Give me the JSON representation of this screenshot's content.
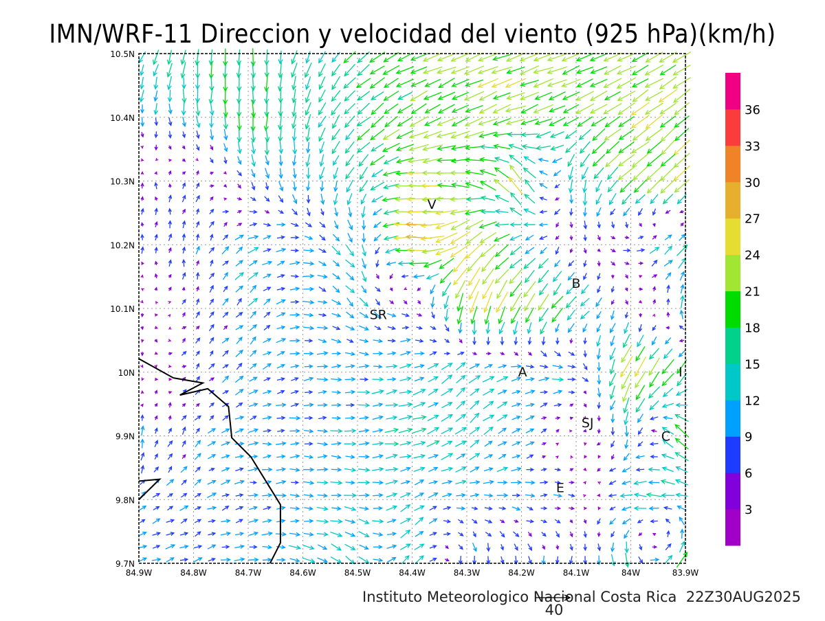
{
  "chart_data": {
    "type": "vector-field",
    "title": "IMN/WRF-11 Direccion y velocidad del viento (925 hPa)(km/h)",
    "footer": "Instituto Meteorologico Nacional Costa Rica  22Z30AUG2025",
    "reference_vector": {
      "value": 40,
      "label": "40"
    },
    "x_ticks": [
      {
        "v": -84.9,
        "label": "84.9W"
      },
      {
        "v": -84.8,
        "label": "84.8W"
      },
      {
        "v": -84.7,
        "label": "84.7W"
      },
      {
        "v": -84.6,
        "label": "84.6W"
      },
      {
        "v": -84.5,
        "label": "84.5W"
      },
      {
        "v": -84.4,
        "label": "84.4W"
      },
      {
        "v": -84.3,
        "label": "84.3W"
      },
      {
        "v": -84.2,
        "label": "84.2W"
      },
      {
        "v": -84.1,
        "label": "84.1W"
      },
      {
        "v": -84.0,
        "label": "84W"
      },
      {
        "v": -83.9,
        "label": "83.9W"
      }
    ],
    "y_ticks": [
      {
        "v": 10.5,
        "label": "10.5N"
      },
      {
        "v": 10.4,
        "label": "10.4N"
      },
      {
        "v": 10.3,
        "label": "10.3N"
      },
      {
        "v": 10.2,
        "label": "10.2N"
      },
      {
        "v": 10.1,
        "label": "10.1N"
      },
      {
        "v": 10.0,
        "label": "10N"
      },
      {
        "v": 9.9,
        "label": "9.9N"
      },
      {
        "v": 9.8,
        "label": "9.8N"
      },
      {
        "v": 9.7,
        "label": "9.7N"
      }
    ],
    "xlim": [
      -84.9,
      -83.9
    ],
    "ylim": [
      9.7,
      10.5
    ],
    "colorbar": {
      "labels": [
        "3",
        "6",
        "9",
        "12",
        "15",
        "18",
        "21",
        "24",
        "27",
        "30",
        "33",
        "36"
      ],
      "colors": [
        "#a000c8",
        "#8200dc",
        "#1e3cff",
        "#00a0ff",
        "#00c8c8",
        "#00d28c",
        "#00dc00",
        "#a0e632",
        "#e6dc32",
        "#e6af2d",
        "#f08228",
        "#fa3c3c",
        "#f00082"
      ],
      "step": 3
    },
    "wind_grid": {
      "note": "[speed km/h, heading deg toward (0=N,90=E)]; rows lat 10.5..9.7, cols lon 84.9W..83.9W",
      "rows": [
        [
          [
            15,
            200
          ],
          [
            18,
            190
          ],
          [
            18,
            180
          ],
          [
            15,
            200
          ],
          [
            18,
            230
          ],
          [
            20,
            245
          ],
          [
            22,
            250
          ],
          [
            22,
            250
          ],
          [
            22,
            250
          ],
          [
            22,
            245
          ],
          [
            22,
            240
          ]
        ],
        [
          [
            10,
            180
          ],
          [
            12,
            170
          ],
          [
            20,
            180
          ],
          [
            15,
            190
          ],
          [
            18,
            230
          ],
          [
            20,
            240
          ],
          [
            22,
            245
          ],
          [
            22,
            250
          ],
          [
            20,
            245
          ],
          [
            22,
            235
          ],
          [
            22,
            230
          ]
        ],
        [
          [
            5,
            0
          ],
          [
            6,
            20
          ],
          [
            8,
            150
          ],
          [
            12,
            180
          ],
          [
            15,
            210
          ],
          [
            25,
            270
          ],
          [
            20,
            280
          ],
          [
            25,
            330
          ],
          [
            15,
            180
          ],
          [
            22,
            230
          ],
          [
            22,
            225
          ]
        ],
        [
          [
            6,
            0
          ],
          [
            8,
            10
          ],
          [
            12,
            60
          ],
          [
            10,
            90
          ],
          [
            15,
            150
          ],
          [
            30,
            275
          ],
          [
            27,
            230
          ],
          [
            15,
            240
          ],
          [
            5,
            180
          ],
          [
            8,
            90
          ],
          [
            15,
            45
          ]
        ],
        [
          [
            3,
            180
          ],
          [
            6,
            30
          ],
          [
            10,
            45
          ],
          [
            10,
            90
          ],
          [
            12,
            140
          ],
          [
            8,
            100
          ],
          [
            25,
            195
          ],
          [
            25,
            210
          ],
          [
            18,
            225
          ],
          [
            5,
            180
          ],
          [
            12,
            0
          ]
        ],
        [
          [
            3,
            180
          ],
          [
            6,
            45
          ],
          [
            10,
            50
          ],
          [
            10,
            80
          ],
          [
            10,
            90
          ],
          [
            12,
            70
          ],
          [
            15,
            45
          ],
          [
            12,
            80
          ],
          [
            12,
            90
          ],
          [
            27,
            210
          ],
          [
            20,
            215
          ]
        ],
        [
          [
            9,
            0
          ],
          [
            8,
            45
          ],
          [
            9,
            80
          ],
          [
            10,
            90
          ],
          [
            12,
            90
          ],
          [
            15,
            80
          ],
          [
            15,
            50
          ],
          [
            10,
            60
          ],
          [
            3,
            300
          ],
          [
            12,
            180
          ],
          [
            20,
            315
          ]
        ],
        [
          [
            9,
            45
          ],
          [
            9,
            60
          ],
          [
            9,
            80
          ],
          [
            10,
            90
          ],
          [
            12,
            95
          ],
          [
            12,
            60
          ],
          [
            10,
            90
          ],
          [
            10,
            90
          ],
          [
            6,
            90
          ],
          [
            15,
            270
          ],
          [
            15,
            280
          ]
        ],
        [
          [
            9,
            70
          ],
          [
            9,
            70
          ],
          [
            10,
            80
          ],
          [
            12,
            100
          ],
          [
            15,
            130
          ],
          [
            15,
            40
          ],
          [
            10,
            180
          ],
          [
            8,
            170
          ],
          [
            8,
            180
          ],
          [
            15,
            170
          ],
          [
            20,
            40
          ]
        ]
      ]
    },
    "coastline": [
      [
        [
          -84.9,
          10.021
        ],
        [
          -84.837,
          9.991
        ],
        [
          -84.783,
          9.983
        ],
        [
          -84.825,
          9.964
        ],
        [
          -84.774,
          9.974
        ],
        [
          -84.736,
          9.946
        ],
        [
          -84.73,
          9.897
        ],
        [
          -84.695,
          9.867
        ],
        [
          -84.641,
          9.792
        ],
        [
          -84.641,
          9.732
        ],
        [
          -84.66,
          9.7
        ]
      ],
      [
        [
          -84.9,
          9.829
        ],
        [
          -84.862,
          9.832
        ],
        [
          -84.9,
          9.8
        ]
      ]
    ],
    "stations": [
      {
        "label": "V",
        "lon": -84.364,
        "lat": 10.264
      },
      {
        "label": "SR",
        "lon": -84.462,
        "lat": 10.091
      },
      {
        "label": "B",
        "lon": -84.1,
        "lat": 10.14
      },
      {
        "label": "A",
        "lon": -84.198,
        "lat": 10.001
      },
      {
        "label": "SJ",
        "lon": -84.079,
        "lat": 9.921
      },
      {
        "label": "I",
        "lon": -83.909,
        "lat": 10.001
      },
      {
        "label": "C",
        "lon": -83.936,
        "lat": 9.9
      },
      {
        "label": "E",
        "lon": -84.129,
        "lat": 9.819
      }
    ]
  }
}
